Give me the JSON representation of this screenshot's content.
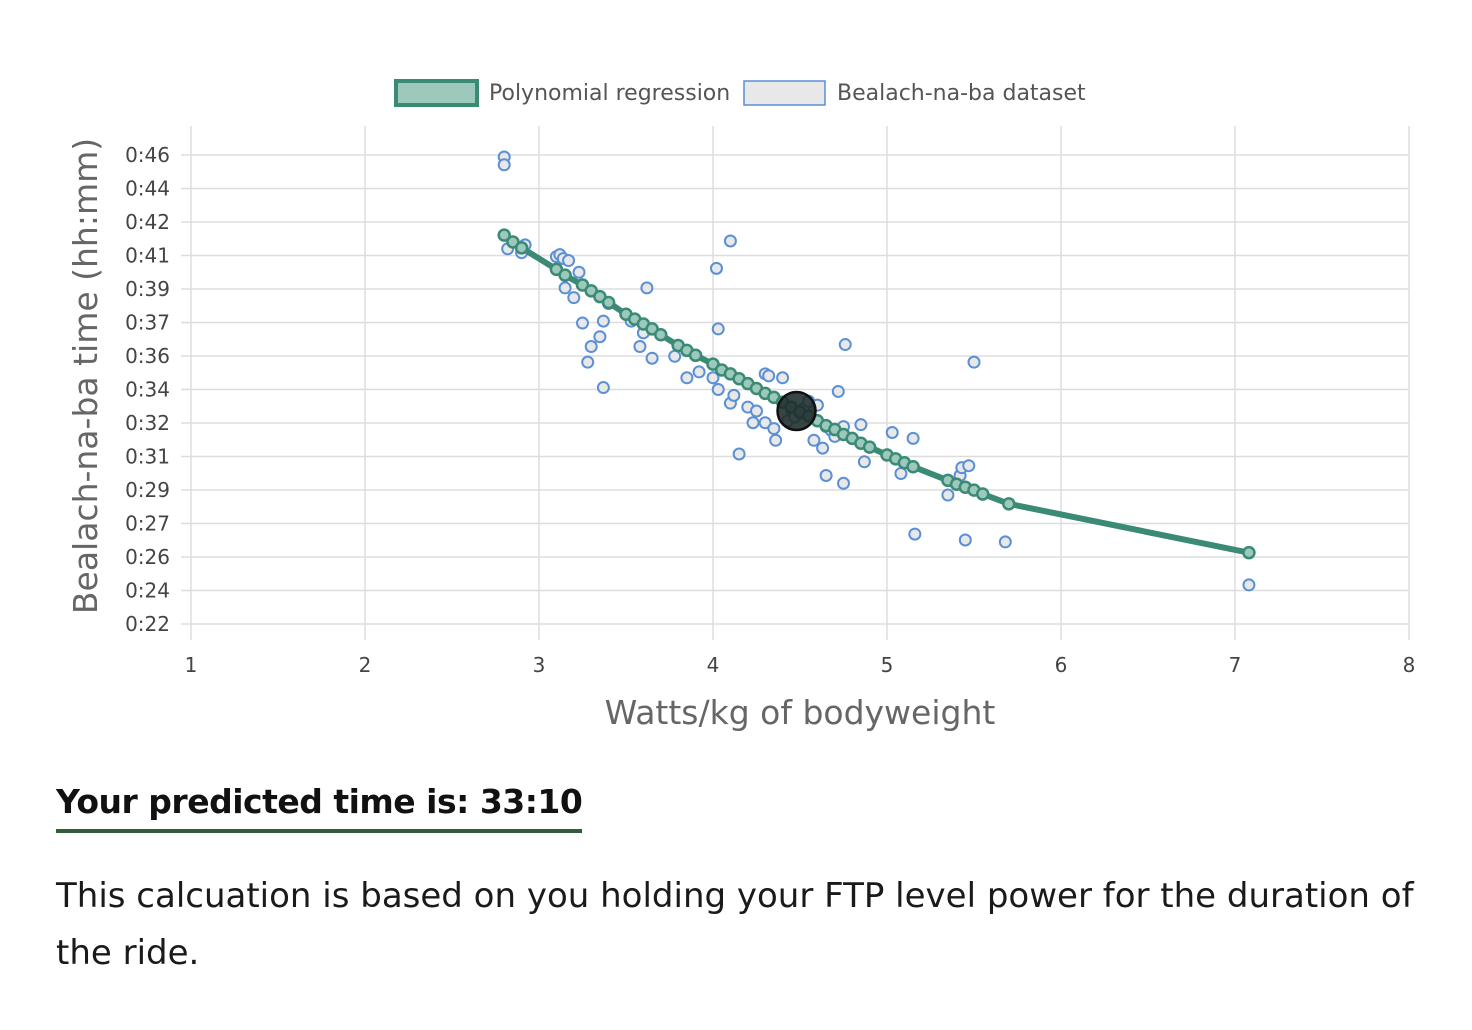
{
  "colors": {
    "regression_line": "#3a8a76",
    "regression_fill": "#9dc9bc",
    "dataset_stroke": "#5b8fd6",
    "dataset_fill": "#e8e8e8",
    "user_marker": "#1e2a2a",
    "heading_underline": "#2e5e3a"
  },
  "chart_data": {
    "type": "scatter",
    "xlabel": "Watts/kg of bodyweight",
    "ylabel": "Bealach-na-ba time (hh:mm)",
    "xlim": [
      1,
      8
    ],
    "xticks": [
      "1",
      "2",
      "3",
      "4",
      "5",
      "6",
      "7",
      "8"
    ],
    "ylim": [
      22,
      47
    ],
    "yticks": [
      "0:22",
      "0:24",
      "0:26",
      "0:27",
      "0:29",
      "0:31",
      "0:32",
      "0:34",
      "0:36",
      "0:37",
      "0:39",
      "0:41",
      "0:42",
      "0:44",
      "0:46"
    ],
    "grid": true,
    "legend": "top-center",
    "series": [
      {
        "name": "Polynomial regression",
        "kind": "line",
        "x": [
          2.8,
          2.85,
          2.9,
          3.1,
          3.15,
          3.25,
          3.3,
          3.35,
          3.4,
          3.5,
          3.55,
          3.6,
          3.65,
          3.7,
          3.8,
          3.85,
          3.9,
          4.0,
          4.05,
          4.1,
          4.15,
          4.2,
          4.25,
          4.3,
          4.35,
          4.4,
          4.45,
          4.5,
          4.55,
          4.6,
          4.65,
          4.7,
          4.75,
          4.8,
          4.85,
          4.9,
          5.0,
          5.05,
          5.1,
          5.15,
          5.35,
          5.4,
          5.45,
          5.5,
          5.55,
          5.7,
          7.08
        ],
        "y": [
          41.9,
          41.55,
          41.25,
          40.15,
          39.85,
          39.35,
          39.05,
          38.75,
          38.45,
          37.85,
          37.6,
          37.35,
          37.1,
          36.8,
          36.25,
          36.0,
          35.75,
          35.3,
          35.0,
          34.8,
          34.55,
          34.3,
          34.05,
          33.8,
          33.6,
          33.35,
          33.1,
          32.85,
          32.65,
          32.4,
          32.15,
          31.95,
          31.7,
          31.5,
          31.25,
          31.05,
          30.65,
          30.45,
          30.25,
          30.05,
          29.35,
          29.15,
          29.0,
          28.85,
          28.65,
          28.15,
          25.65
        ]
      },
      {
        "name": "Bealach-na-ba dataset",
        "kind": "scatter",
        "x": [
          2.8,
          2.8,
          2.82,
          2.9,
          2.92,
          3.1,
          3.12,
          3.14,
          3.15,
          3.17,
          3.2,
          3.23,
          3.25,
          3.28,
          3.3,
          3.35,
          3.37,
          3.37,
          3.4,
          3.53,
          3.58,
          3.6,
          3.62,
          3.65,
          3.78,
          3.85,
          3.92,
          4.0,
          4.02,
          4.03,
          4.03,
          4.1,
          4.1,
          4.12,
          4.15,
          4.2,
          4.23,
          4.25,
          4.3,
          4.3,
          4.32,
          4.35,
          4.36,
          4.4,
          4.43,
          4.45,
          4.47,
          4.5,
          4.52,
          4.55,
          4.58,
          4.6,
          4.63,
          4.65,
          4.65,
          4.68,
          4.7,
          4.72,
          4.75,
          4.75,
          4.76,
          4.85,
          4.87,
          5.03,
          5.08,
          5.15,
          5.16,
          5.35,
          5.42,
          5.43,
          5.45,
          5.47,
          5.5,
          5.68,
          7.08
        ],
        "y": [
          45.9,
          45.5,
          41.2,
          41.0,
          41.4,
          40.8,
          40.9,
          40.7,
          39.2,
          40.6,
          38.7,
          40.0,
          37.4,
          35.4,
          36.2,
          36.7,
          37.5,
          34.1,
          38.4,
          37.5,
          36.2,
          36.9,
          39.2,
          35.6,
          35.7,
          34.6,
          34.9,
          34.6,
          40.2,
          34.0,
          37.1,
          33.3,
          41.6,
          33.7,
          30.7,
          33.1,
          32.3,
          32.9,
          34.8,
          32.3,
          34.7,
          32.0,
          31.4,
          34.6,
          32.4,
          33.0,
          32.6,
          32.8,
          33.0,
          33.4,
          31.4,
          33.2,
          31.0,
          32.1,
          29.6,
          31.9,
          31.6,
          33.9,
          29.2,
          32.1,
          36.3,
          32.2,
          30.3,
          31.8,
          29.7,
          31.5,
          26.6,
          28.6,
          29.6,
          30.0,
          26.3,
          30.1,
          35.4,
          26.2,
          24.0
        ]
      },
      {
        "kind": "highlight",
        "x": [
          4.48
        ],
        "y": [
          32.9
        ]
      }
    ]
  },
  "result": {
    "heading": "Your predicted time is: 33:10",
    "note": "This calcuation is based on you holding your FTP level power for the duration of the ride."
  }
}
